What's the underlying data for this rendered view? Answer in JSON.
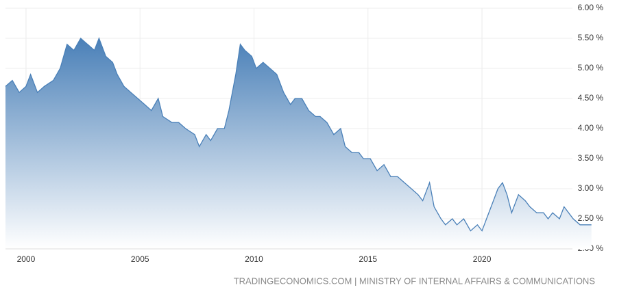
{
  "chart_data": {
    "type": "area",
    "source": "TRADINGECONOMICS.COM | MINISTRY OF INTERNAL AFFAIRS & COMMUNICATIONS",
    "color": "#4a80b8",
    "x": [
      1999.1,
      1999.4,
      1999.7,
      2000.0,
      2000.2,
      2000.5,
      2000.8,
      2001.2,
      2001.5,
      2001.8,
      2002.1,
      2002.4,
      2002.7,
      2003.0,
      2003.2,
      2003.5,
      2003.8,
      2004.0,
      2004.3,
      2004.6,
      2004.9,
      2005.2,
      2005.5,
      2005.8,
      2006.0,
      2006.4,
      2006.7,
      2007.0,
      2007.4,
      2007.6,
      2007.9,
      2008.1,
      2008.4,
      2008.7,
      2008.9,
      2009.2,
      2009.4,
      2009.6,
      2009.9,
      2010.1,
      2010.4,
      2010.7,
      2011.0,
      2011.3,
      2011.6,
      2011.8,
      2012.1,
      2012.4,
      2012.7,
      2012.9,
      2013.2,
      2013.5,
      2013.8,
      2014.0,
      2014.3,
      2014.6,
      2014.8,
      2015.1,
      2015.4,
      2015.7,
      2016.0,
      2016.3,
      2016.6,
      2016.9,
      2017.2,
      2017.4,
      2017.7,
      2017.9,
      2018.2,
      2018.4,
      2018.7,
      2018.9,
      2019.2,
      2019.5,
      2019.8,
      2020.0,
      2020.2,
      2020.5,
      2020.7,
      2020.9,
      2021.1,
      2021.3,
      2021.6,
      2021.9,
      2022.1,
      2022.4,
      2022.7,
      2022.9,
      2023.1,
      2023.4,
      2023.6,
      2023.8,
      2024.0,
      2024.3,
      2024.6,
      2024.8
    ],
    "values": [
      4.7,
      4.8,
      4.6,
      4.7,
      4.9,
      4.6,
      4.7,
      4.8,
      5.0,
      5.4,
      5.3,
      5.5,
      5.4,
      5.3,
      5.5,
      5.2,
      5.1,
      4.9,
      4.7,
      4.6,
      4.5,
      4.4,
      4.3,
      4.5,
      4.2,
      4.1,
      4.1,
      4.0,
      3.9,
      3.7,
      3.9,
      3.8,
      4.0,
      4.0,
      4.3,
      4.9,
      5.4,
      5.3,
      5.2,
      5.0,
      5.1,
      5.0,
      4.9,
      4.6,
      4.4,
      4.5,
      4.5,
      4.3,
      4.2,
      4.2,
      4.1,
      3.9,
      4.0,
      3.7,
      3.6,
      3.6,
      3.5,
      3.5,
      3.3,
      3.4,
      3.2,
      3.2,
      3.1,
      3.0,
      2.9,
      2.8,
      3.1,
      2.7,
      2.5,
      2.4,
      2.5,
      2.4,
      2.5,
      2.3,
      2.4,
      2.3,
      2.5,
      2.8,
      3.0,
      3.1,
      2.9,
      2.6,
      2.9,
      2.8,
      2.7,
      2.6,
      2.6,
      2.5,
      2.6,
      2.5,
      2.7,
      2.6,
      2.5,
      2.4,
      2.4,
      2.4
    ],
    "xlim": [
      1999.1,
      2025.02
    ],
    "xticks": [
      2000,
      2005,
      2010,
      2015,
      2020
    ],
    "ylim": [
      2,
      6
    ],
    "yticks": [
      {
        "value": 2,
        "label": "2.00 %"
      },
      {
        "value": 2.5,
        "label": "2.50 %"
      },
      {
        "value": 3,
        "label": "3.00 %"
      },
      {
        "value": 3.5,
        "label": "3.50 %"
      },
      {
        "value": 4,
        "label": "4.00 %"
      },
      {
        "value": 4.5,
        "label": "4.50 %"
      },
      {
        "value": 5,
        "label": "5.00 %"
      },
      {
        "value": 5.5,
        "label": "5.50 %"
      },
      {
        "value": 6,
        "label": "6.00 %"
      }
    ],
    "grid": true
  }
}
